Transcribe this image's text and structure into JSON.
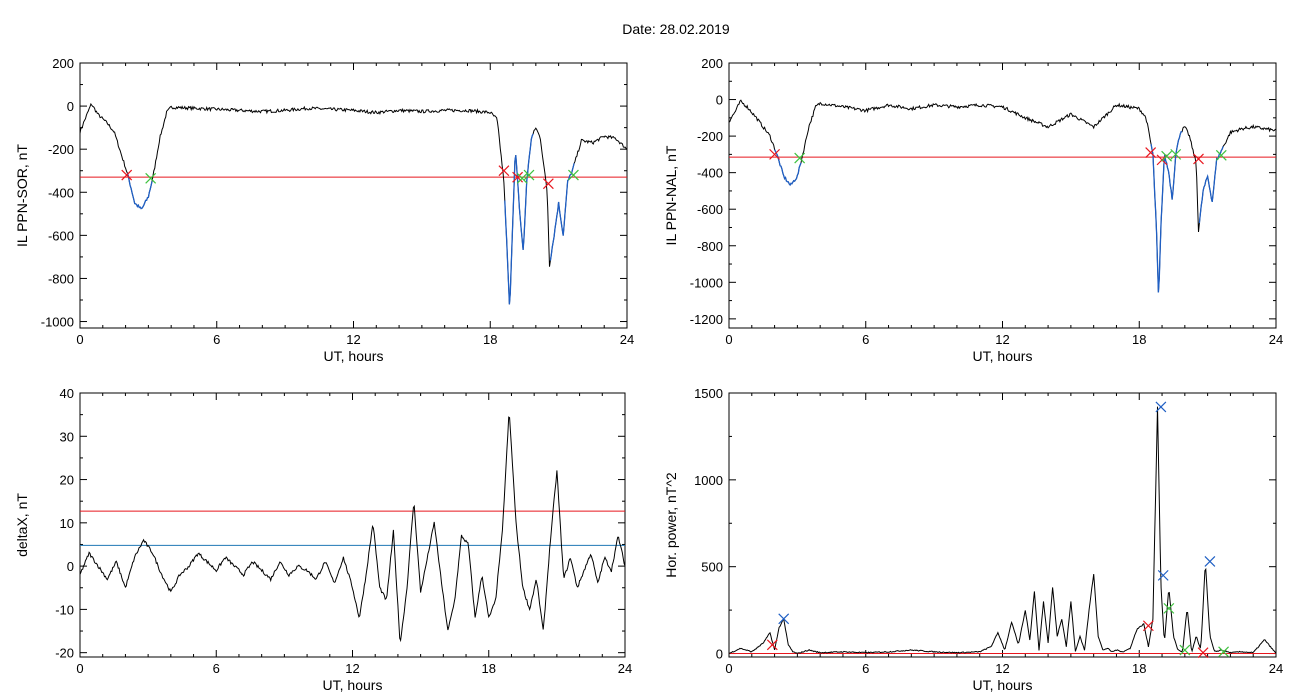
{
  "title": "Date:  28.02.2019",
  "colors": {
    "trace": "#000000",
    "threshold": "#e8161e",
    "highlight": "#1f5fc4",
    "level": "#1f77b4",
    "start_marker": "#e8161e",
    "end_marker": "#3ec23e",
    "peak_marker": "#1f5fc4"
  },
  "chart_data": [
    {
      "type": "line",
      "ylabel": "IL PPN-SOR, nT",
      "xlabel": "UT, hours",
      "xlim": [
        0,
        24
      ],
      "xticks": [
        0,
        6,
        12,
        18,
        24
      ],
      "ylim": [
        -1030,
        200
      ],
      "yticks": [
        200,
        0,
        -200,
        -400,
        -600,
        -800,
        -1000
      ],
      "threshold": -330,
      "x": [
        0,
        0.3,
        0.5,
        0.8,
        1.2,
        1.5,
        1.8,
        2.1,
        2.4,
        2.7,
        3.0,
        3.2,
        3.5,
        3.8,
        4,
        5,
        6,
        7,
        8,
        9,
        10,
        11,
        12,
        13,
        14,
        15,
        16,
        17,
        18,
        18.3,
        18.6,
        18.75,
        18.85,
        18.95,
        19.1,
        19.3,
        19.45,
        19.6,
        19.8,
        20,
        20.2,
        20.5,
        20.6,
        20.8,
        21,
        21.2,
        21.4,
        21.6,
        22,
        22.5,
        23,
        23.5,
        24
      ],
      "y": [
        -120,
        -40,
        10,
        -40,
        -80,
        -120,
        -220,
        -320,
        -450,
        -480,
        -420,
        -330,
        -150,
        -30,
        -5,
        -10,
        -15,
        -20,
        -25,
        -20,
        -10,
        -15,
        -20,
        -30,
        -20,
        -25,
        -20,
        -20,
        -30,
        -60,
        -350,
        -700,
        -950,
        -650,
        -200,
        -500,
        -680,
        -350,
        -150,
        -100,
        -150,
        -400,
        -740,
        -600,
        -450,
        -600,
        -350,
        -300,
        -160,
        -170,
        -140,
        -150,
        -200
      ],
      "highlight_segments": [
        [
          2.05,
          3.2
        ],
        [
          18.6,
          19.9
        ],
        [
          20.6,
          21.7
        ]
      ],
      "markers": [
        {
          "x": 2.05,
          "y": -320,
          "kind": "start"
        },
        {
          "x": 3.1,
          "y": -335,
          "kind": "end"
        },
        {
          "x": 18.6,
          "y": -300,
          "kind": "start"
        },
        {
          "x": 19.2,
          "y": -330,
          "kind": "start"
        },
        {
          "x": 19.4,
          "y": -335,
          "kind": "end"
        },
        {
          "x": 19.7,
          "y": -320,
          "kind": "end"
        },
        {
          "x": 20.55,
          "y": -360,
          "kind": "start"
        },
        {
          "x": 21.65,
          "y": -320,
          "kind": "end"
        }
      ]
    },
    {
      "type": "line",
      "ylabel": "IL PPN-NAL, nT",
      "xlabel": "UT, hours",
      "xlim": [
        0,
        24
      ],
      "xticks": [
        0,
        6,
        12,
        18,
        24
      ],
      "ylim": [
        -1250,
        200
      ],
      "yticks": [
        200,
        0,
        -200,
        -400,
        -600,
        -800,
        -1000,
        -1200
      ],
      "threshold": -315,
      "x": [
        0,
        0.3,
        0.5,
        0.8,
        1.2,
        1.5,
        1.8,
        2.1,
        2.4,
        2.7,
        3.0,
        3.2,
        3.5,
        3.8,
        4,
        5,
        6,
        7,
        8,
        9,
        10,
        11,
        12,
        13,
        14,
        15,
        16,
        17,
        18,
        18.3,
        18.6,
        18.75,
        18.85,
        18.95,
        19.1,
        19.3,
        19.45,
        19.6,
        19.8,
        20,
        20.2,
        20.5,
        20.6,
        20.8,
        21,
        21.2,
        21.4,
        21.6,
        22,
        22.5,
        23,
        23.5,
        24
      ],
      "y": [
        -120,
        -60,
        -10,
        -40,
        -100,
        -150,
        -200,
        -300,
        -420,
        -470,
        -420,
        -320,
        -150,
        -40,
        -20,
        -40,
        -60,
        -30,
        -50,
        -30,
        -40,
        -30,
        -40,
        -100,
        -150,
        -80,
        -150,
        -30,
        -50,
        -100,
        -300,
        -700,
        -1100,
        -700,
        -300,
        -400,
        -550,
        -300,
        -180,
        -150,
        -200,
        -350,
        -720,
        -500,
        -420,
        -560,
        -330,
        -280,
        -180,
        -160,
        -150,
        -160,
        -170
      ],
      "highlight_segments": [
        [
          2.0,
          3.2
        ],
        [
          18.5,
          19.9
        ],
        [
          20.6,
          21.7
        ]
      ],
      "markers": [
        {
          "x": 2.0,
          "y": -300,
          "kind": "start"
        },
        {
          "x": 3.1,
          "y": -320,
          "kind": "end"
        },
        {
          "x": 18.5,
          "y": -290,
          "kind": "start"
        },
        {
          "x": 19.0,
          "y": -330,
          "kind": "start"
        },
        {
          "x": 19.2,
          "y": -310,
          "kind": "end"
        },
        {
          "x": 19.6,
          "y": -300,
          "kind": "end"
        },
        {
          "x": 20.6,
          "y": -325,
          "kind": "start"
        },
        {
          "x": 21.6,
          "y": -305,
          "kind": "end"
        }
      ]
    },
    {
      "type": "line",
      "ylabel": "deltaX, nT",
      "xlabel": "UT, hours",
      "xlim": [
        0,
        24
      ],
      "xticks": [
        0,
        6,
        12,
        18,
        24
      ],
      "ylim": [
        -21,
        40
      ],
      "yticks": [
        40,
        30,
        20,
        10,
        0,
        -10,
        -20
      ],
      "threshold": 12.7,
      "level": 4.8,
      "x": [
        0,
        0.4,
        0.8,
        1.2,
        1.6,
        2.0,
        2.4,
        2.8,
        3.2,
        3.6,
        4.0,
        4.4,
        4.8,
        5.2,
        5.6,
        6.0,
        6.4,
        6.8,
        7.2,
        7.6,
        8.0,
        8.4,
        8.8,
        9.2,
        9.6,
        10.0,
        10.4,
        10.8,
        11.2,
        11.6,
        12.0,
        12.3,
        12.6,
        12.9,
        13.2,
        13.5,
        13.8,
        14.1,
        14.4,
        14.7,
        15.0,
        15.3,
        15.6,
        15.9,
        16.2,
        16.5,
        16.8,
        17.1,
        17.4,
        17.7,
        18.0,
        18.3,
        18.6,
        18.9,
        19.2,
        19.5,
        19.8,
        20.1,
        20.4,
        20.7,
        21.0,
        21.3,
        21.6,
        21.9,
        22.2,
        22.5,
        22.8,
        23.1,
        23.4,
        23.7,
        24.0
      ],
      "y": [
        -2,
        3,
        0,
        -3,
        1,
        -5,
        2,
        6,
        3,
        -2,
        -6,
        -2,
        0,
        3,
        1,
        -1,
        2,
        0,
        -2,
        1,
        -1,
        -3,
        1,
        -2,
        0,
        -1,
        -3,
        1,
        -4,
        2,
        -5,
        -12,
        -2,
        10,
        -5,
        -8,
        8,
        -18,
        -5,
        15,
        -6,
        2,
        10,
        -3,
        -15,
        -8,
        7,
        5,
        -12,
        -2,
        -12,
        -8,
        8,
        36,
        10,
        -5,
        -10,
        -3,
        -15,
        5,
        22,
        -3,
        2,
        -5,
        -1,
        3,
        -4,
        2,
        -1,
        7,
        0
      ]
    },
    {
      "type": "line",
      "ylabel": "Hor. power, nT^2",
      "xlabel": "UT, hours",
      "xlim": [
        0,
        24
      ],
      "xticks": [
        0,
        6,
        12,
        18,
        24
      ],
      "ylim": [
        -20,
        1500
      ],
      "yticks": [
        1500,
        1000,
        500,
        0
      ],
      "threshold": 0,
      "x": [
        0,
        0.5,
        1.0,
        1.5,
        1.8,
        2.0,
        2.2,
        2.4,
        2.6,
        2.8,
        3.0,
        3.5,
        4.0,
        5,
        6,
        7,
        8,
        9,
        10,
        11,
        11.5,
        11.8,
        12.1,
        12.4,
        12.7,
        13.0,
        13.2,
        13.4,
        13.6,
        13.8,
        14.0,
        14.2,
        14.4,
        14.6,
        14.8,
        15.0,
        15.2,
        15.4,
        15.6,
        15.8,
        16.0,
        16.2,
        16.4,
        16.6,
        16.8,
        17.0,
        17.3,
        17.6,
        17.9,
        18.2,
        18.4,
        18.6,
        18.8,
        18.95,
        19.1,
        19.3,
        19.5,
        19.7,
        19.9,
        20.1,
        20.3,
        20.5,
        20.7,
        20.9,
        21.1,
        21.3,
        21.6,
        22,
        22.5,
        23,
        23.5,
        24
      ],
      "y": [
        0,
        30,
        10,
        60,
        120,
        20,
        150,
        200,
        50,
        10,
        0,
        20,
        5,
        10,
        5,
        10,
        20,
        10,
        5,
        10,
        40,
        120,
        20,
        180,
        50,
        250,
        80,
        360,
        20,
        300,
        60,
        380,
        100,
        200,
        40,
        300,
        10,
        100,
        20,
        250,
        460,
        100,
        20,
        30,
        10,
        20,
        10,
        30,
        140,
        170,
        40,
        200,
        1420,
        400,
        60,
        380,
        100,
        20,
        10,
        260,
        5,
        100,
        20,
        530,
        100,
        10,
        20,
        5,
        10,
        5,
        80,
        0
      ],
      "markers": [
        {
          "x": 2.4,
          "y": 200,
          "kind": "peak"
        },
        {
          "x": 1.9,
          "y": 50,
          "kind": "start"
        },
        {
          "x": 18.95,
          "y": 1420,
          "kind": "peak"
        },
        {
          "x": 19.05,
          "y": 450,
          "kind": "peak"
        },
        {
          "x": 21.1,
          "y": 530,
          "kind": "peak"
        },
        {
          "x": 18.4,
          "y": 160,
          "kind": "start"
        },
        {
          "x": 19.3,
          "y": 260,
          "kind": "end"
        },
        {
          "x": 20.0,
          "y": 20,
          "kind": "end"
        },
        {
          "x": 20.8,
          "y": 5,
          "kind": "start"
        },
        {
          "x": 21.7,
          "y": 10,
          "kind": "end"
        }
      ]
    }
  ]
}
